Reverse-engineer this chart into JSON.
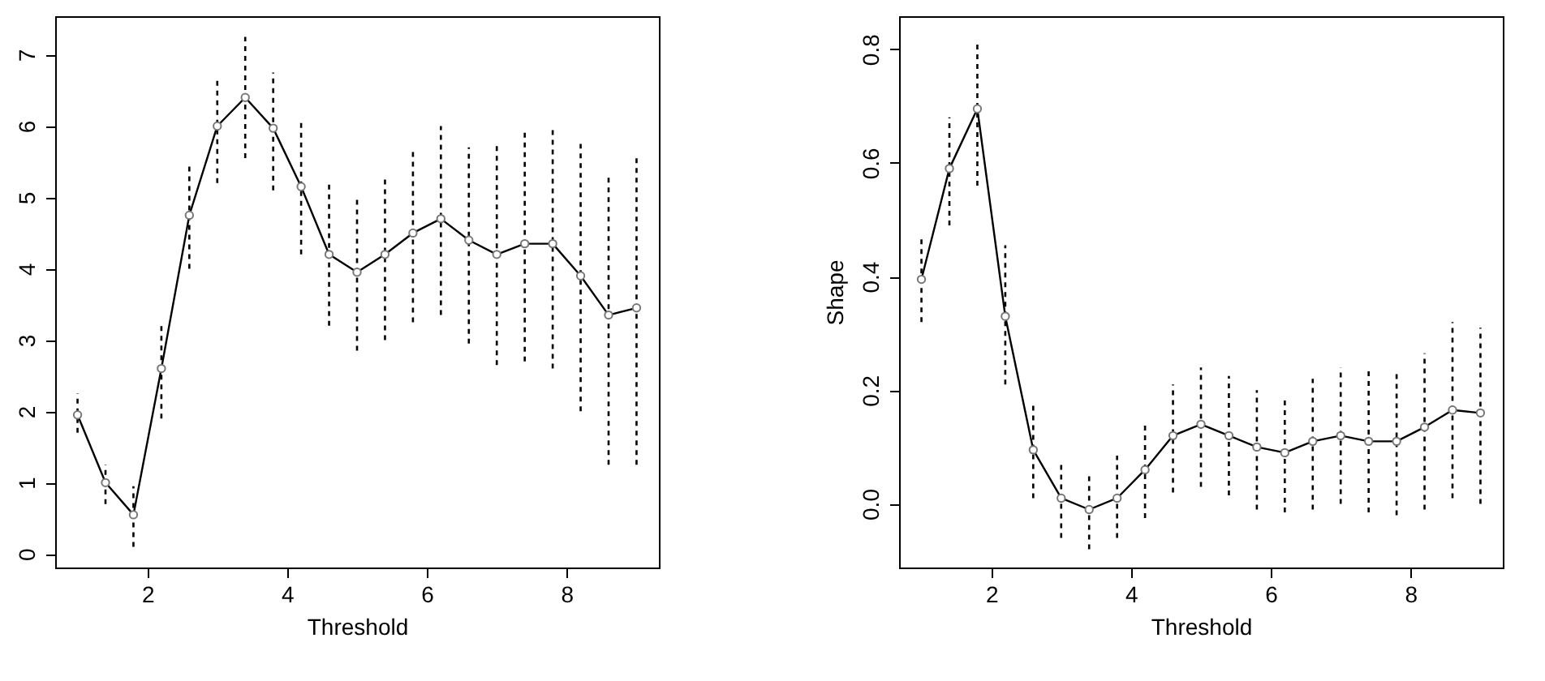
{
  "chart_data": [
    {
      "type": "line",
      "xlabel": "Threshold",
      "x": [
        1,
        1.4,
        1.8,
        2.2,
        2.6,
        3,
        3.4,
        3.8,
        4.2,
        4.6,
        5,
        5.4,
        5.8,
        6.2,
        6.6,
        7,
        7.4,
        7.8,
        8.2,
        8.6,
        9
      ],
      "xlim": [
        0.68,
        9.32
      ],
      "xticks": [
        2,
        4,
        6,
        8
      ],
      "ylim": [
        -0.19,
        7.54
      ],
      "yticks": [
        0,
        1,
        2,
        3,
        4,
        5,
        6,
        7
      ],
      "grid": false,
      "marker": "circle",
      "line_style": "solid",
      "series": [
        {
          "color": "#000000",
          "values": [
            1.95,
            1.0,
            0.55,
            2.6,
            4.75,
            6.0,
            6.4,
            5.97,
            5.15,
            4.2,
            3.95,
            4.2,
            4.5,
            4.7,
            4.4,
            4.2,
            4.35,
            4.35,
            3.9,
            3.35,
            3.45
          ],
          "errors": [
            [
              1.7,
              2.25
            ],
            [
              0.7,
              1.25
            ],
            [
              0.1,
              0.95
            ],
            [
              1.9,
              3.25
            ],
            [
              4.0,
              5.5
            ],
            [
              5.2,
              6.7
            ],
            [
              5.55,
              7.25
            ],
            [
              5.1,
              6.75
            ],
            [
              4.2,
              6.05
            ],
            [
              3.2,
              5.2
            ],
            [
              2.85,
              5.0
            ],
            [
              3.0,
              5.3
            ],
            [
              3.25,
              5.7
            ],
            [
              3.35,
              6.0
            ],
            [
              2.95,
              5.7
            ],
            [
              2.65,
              5.75
            ],
            [
              2.7,
              5.95
            ],
            [
              2.6,
              6.0
            ],
            [
              2.0,
              5.75
            ],
            [
              1.25,
              5.3
            ],
            [
              1.25,
              5.6
            ]
          ]
        }
      ]
    },
    {
      "type": "line",
      "xlabel": "Threshold",
      "ylabel": "Shape",
      "x": [
        1,
        1.4,
        1.8,
        2.2,
        2.6,
        3,
        3.4,
        3.8,
        4.2,
        4.6,
        5,
        5.4,
        5.8,
        6.2,
        6.6,
        7,
        7.4,
        7.8,
        8.2,
        8.6,
        9
      ],
      "xlim": [
        0.68,
        9.32
      ],
      "xticks": [
        2,
        4,
        6,
        8
      ],
      "ylim": [
        -0.112,
        0.858
      ],
      "yticks": [
        {
          "value": 0,
          "label": "0.0"
        },
        {
          "value": 0.2,
          "label": "0.2"
        },
        {
          "value": 0.4,
          "label": "0.4"
        },
        {
          "value": 0.6,
          "label": "0.6"
        },
        {
          "value": 0.8,
          "label": "0.8"
        }
      ],
      "grid": false,
      "marker": "circle",
      "line_style": "solid",
      "series": [
        {
          "color": "#000000",
          "values": [
            0.395,
            0.59,
            0.695,
            0.33,
            0.095,
            0.01,
            -0.01,
            0.01,
            0.06,
            0.12,
            0.14,
            0.12,
            0.1,
            0.09,
            0.11,
            0.12,
            0.11,
            0.11,
            0.135,
            0.165,
            0.16
          ],
          "errors": [
            [
              0.32,
              0.47
            ],
            [
              0.49,
              0.68
            ],
            [
              0.56,
              0.815
            ],
            [
              0.21,
              0.455
            ],
            [
              0.01,
              0.18
            ],
            [
              -0.06,
              0.07
            ],
            [
              -0.08,
              0.055
            ],
            [
              -0.06,
              0.085
            ],
            [
              -0.025,
              0.14
            ],
            [
              0.02,
              0.21
            ],
            [
              0.03,
              0.24
            ],
            [
              0.015,
              0.225
            ],
            [
              -0.01,
              0.2
            ],
            [
              -0.015,
              0.19
            ],
            [
              -0.01,
              0.22
            ],
            [
              0,
              0.24
            ],
            [
              -0.015,
              0.235
            ],
            [
              -0.02,
              0.23
            ],
            [
              -0.01,
              0.265
            ],
            [
              0.01,
              0.32
            ],
            [
              0,
              0.31
            ]
          ]
        }
      ]
    }
  ]
}
